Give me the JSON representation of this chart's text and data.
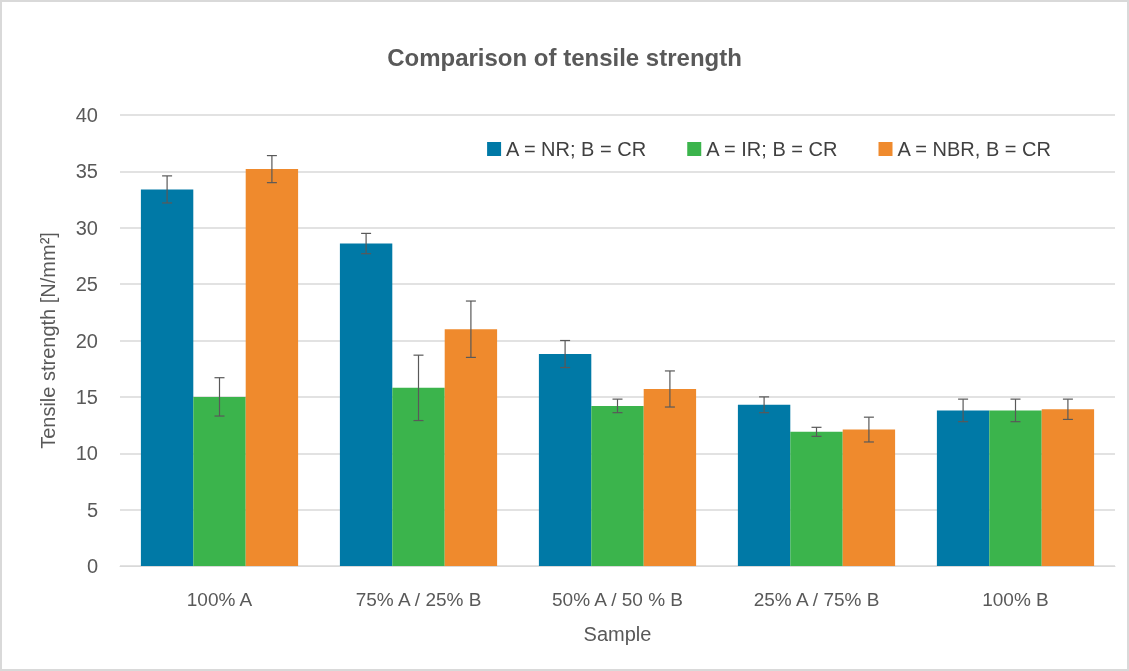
{
  "chart_data": {
    "type": "bar",
    "title": "Comparison of tensile strength",
    "xlabel": "Sample",
    "ylabel": "Tensile strength [N/mm²]",
    "categories": [
      "100% A",
      "75% A / 25% B",
      "50% A / 50 % B",
      "25% A / 75% B",
      "100% B"
    ],
    "series": [
      {
        "name": "A = NR; B = CR",
        "color": "#0079a6",
        "values": [
          33.4,
          28.6,
          18.8,
          14.3,
          13.8
        ],
        "errors": [
          1.2,
          0.9,
          1.2,
          0.7,
          1.0
        ]
      },
      {
        "name": "A = IR; B = CR",
        "color": "#3bb44c",
        "values": [
          15.0,
          15.8,
          14.2,
          11.9,
          13.8
        ],
        "errors": [
          1.7,
          2.9,
          0.6,
          0.4,
          1.0
        ]
      },
      {
        "name": "A = NBR, B = CR",
        "color": "#ef8a2d",
        "values": [
          35.2,
          21.0,
          15.7,
          12.1,
          13.9
        ],
        "errors": [
          1.2,
          2.5,
          1.6,
          1.1,
          0.9
        ]
      }
    ],
    "ylim": [
      0,
      40
    ],
    "yticks": [
      0,
      5,
      10,
      15,
      20,
      25,
      30,
      35,
      40
    ],
    "grid": "y",
    "legend": "top right"
  }
}
